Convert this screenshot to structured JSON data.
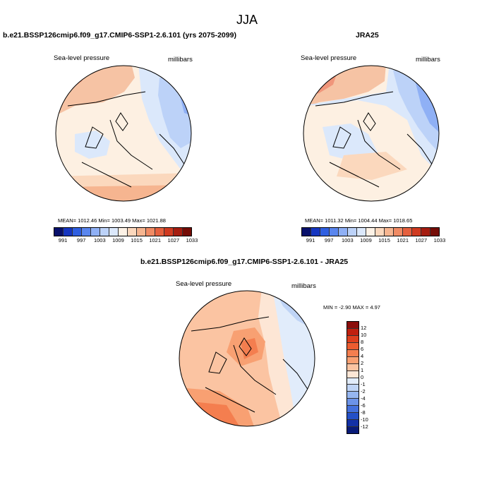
{
  "season": "JJA",
  "panels": {
    "model": {
      "title": "b.e21.BSSP126cmip6.f09_g17.CMIP6-SSP1-2.6.101 (yrs 2075-2099)",
      "variable": "Sea-level pressure",
      "units": "millibars",
      "stats": {
        "mean": "1012.46",
        "min": "1003.49",
        "max": "1021.88"
      }
    },
    "obs": {
      "title": "JRA25",
      "variable": "Sea-level pressure",
      "units": "millibars",
      "stats": {
        "mean": "1011.32",
        "min": "1004.44",
        "max": "1018.65"
      }
    },
    "diff": {
      "title": "b.e21.BSSP126cmip6.f09_g17.CMIP6-SSP1-2.6.101 - JRA25",
      "variable": "Sea-level pressure",
      "units": "millibars",
      "stats": {
        "min": "-2.90",
        "max": "4.97"
      }
    }
  },
  "labels": {
    "mean": "MEAN=",
    "min": "Min=",
    "max": "Max=",
    "min_upper": "MIN =",
    "max_upper": "MAX ="
  },
  "colorbar_abs": {
    "labels": [
      "991",
      "997",
      "1003",
      "1009",
      "1015",
      "1021",
      "1027",
      "1033"
    ],
    "colors": [
      "#08106b",
      "#1636c0",
      "#2f5fe0",
      "#5a86ee",
      "#8fb0f5",
      "#bcd2f8",
      "#dbe8fb",
      "#fdf2e6",
      "#fbd8bd",
      "#f6b590",
      "#f08b64",
      "#e5603e",
      "#cf3a20",
      "#a51d10",
      "#740c06"
    ]
  },
  "colorbar_diff": {
    "labels": [
      "12",
      "10",
      "8",
      "6",
      "4",
      "2",
      "1",
      "0",
      "-1",
      "-2",
      "-4",
      "-6",
      "-8",
      "-10",
      "-12"
    ],
    "colors": [
      "#8b0e0b",
      "#c0200f",
      "#dd3f1e",
      "#ec5c30",
      "#f47e4f",
      "#f8a072",
      "#fbc4a2",
      "#fde6d5",
      "#e1ecfb",
      "#bfd4f6",
      "#96b6f0",
      "#6c93e8",
      "#4470dc",
      "#2450c7",
      "#1230a6",
      "#081a78"
    ]
  }
}
